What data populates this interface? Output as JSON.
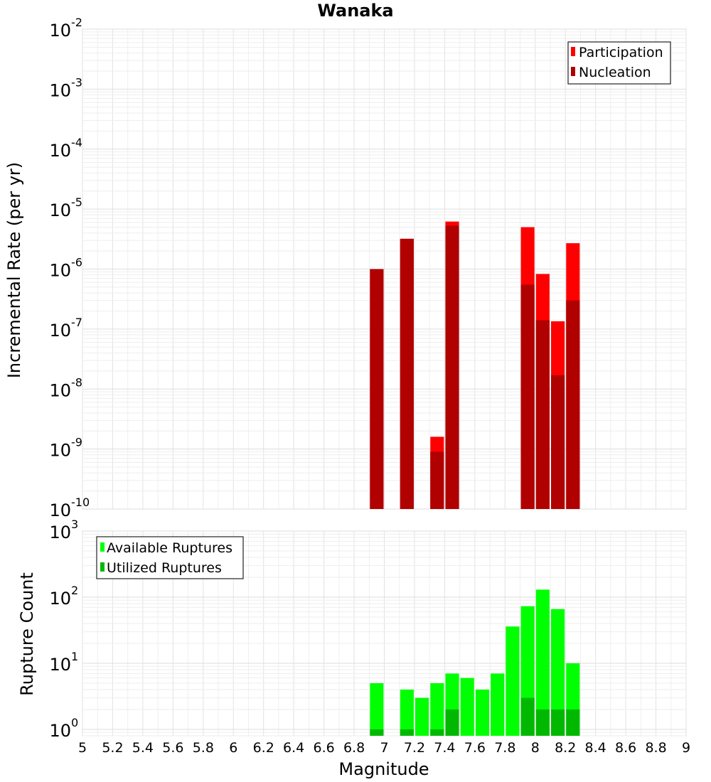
{
  "chart_data": [
    {
      "type": "bar",
      "title": "Wanaka",
      "ylabel": "Incremental Rate (per yr)",
      "xlabel": "",
      "yscale": "log",
      "ylim": [
        1e-10,
        0.01
      ],
      "xlim": [
        5,
        9
      ],
      "y_tick_labels": [
        {
          "base": "10",
          "exp": "-2"
        },
        {
          "base": "10",
          "exp": "-3"
        },
        {
          "base": "10",
          "exp": "-4"
        },
        {
          "base": "10",
          "exp": "-5"
        },
        {
          "base": "10",
          "exp": "-6"
        },
        {
          "base": "10",
          "exp": "-7"
        },
        {
          "base": "10",
          "exp": "-8"
        },
        {
          "base": "10",
          "exp": "-9"
        },
        {
          "base": "10",
          "exp": "-10"
        }
      ],
      "legend_position": "top-right",
      "series": [
        {
          "name": "Participation",
          "color": "#ff0000",
          "x": [
            6.95,
            7.15,
            7.35,
            7.45,
            7.95,
            8.05,
            8.15,
            8.25
          ],
          "values": [
            1e-06,
            3.2e-06,
            1.6e-09,
            6.2e-06,
            5e-06,
            8.3e-07,
            1.35e-07,
            2.7e-06
          ]
        },
        {
          "name": "Nucleation",
          "color": "#b00000",
          "x": [
            6.95,
            7.15,
            7.35,
            7.45,
            7.95,
            8.05,
            8.15,
            8.25
          ],
          "values": [
            1e-06,
            3.2e-06,
            9e-10,
            5.3e-06,
            5.5e-07,
            1.4e-07,
            1.7e-08,
            3e-07
          ]
        }
      ]
    },
    {
      "type": "bar",
      "xlabel": "Magnitude",
      "ylabel": "Rupture Count",
      "yscale": "log",
      "ylim": [
        0.8,
        1000
      ],
      "xlim": [
        5,
        9
      ],
      "y_tick_labels": [
        {
          "base": "10",
          "exp": "3"
        },
        {
          "base": "10",
          "exp": "2"
        },
        {
          "base": "10",
          "exp": "1"
        },
        {
          "base": "10",
          "exp": "0"
        }
      ],
      "x_tick_labels": [
        "5",
        "5.2",
        "5.4",
        "5.6",
        "5.8",
        "6",
        "6.2",
        "6.4",
        "6.6",
        "6.8",
        "7",
        "7.2",
        "7.4",
        "7.6",
        "7.8",
        "8",
        "8.2",
        "8.4",
        "8.6",
        "8.8",
        "9"
      ],
      "legend_position": "top-left",
      "series": [
        {
          "name": "Available Ruptures",
          "color": "#00ff00",
          "x": [
            6.95,
            7.15,
            7.25,
            7.35,
            7.45,
            7.55,
            7.65,
            7.75,
            7.85,
            7.95,
            8.05,
            8.15,
            8.25
          ],
          "values": [
            5,
            4,
            3,
            5,
            7,
            6,
            4,
            7,
            36,
            73,
            130,
            66,
            10
          ]
        },
        {
          "name": "Utilized Ruptures",
          "color": "#00b800",
          "x": [
            6.95,
            7.15,
            7.35,
            7.45,
            7.95,
            8.05,
            8.15,
            8.25
          ],
          "values": [
            1,
            1,
            1,
            2,
            3,
            2,
            2,
            2
          ]
        }
      ]
    }
  ]
}
